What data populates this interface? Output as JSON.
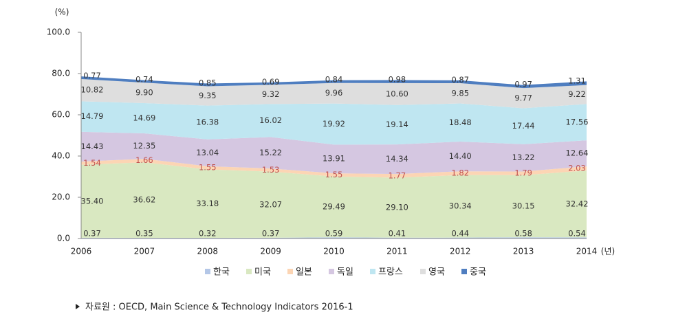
{
  "chart_data": {
    "type": "stacked_area",
    "y_label": "(%)",
    "x_label": "(년)",
    "categories": [
      "2006",
      "2007",
      "2008",
      "2009",
      "2010",
      "2011",
      "2012",
      "2013",
      "2014"
    ],
    "series": [
      {
        "name": "한국",
        "color": "#b4c7e7",
        "values": [
          0.37,
          0.35,
          0.32,
          0.37,
          0.59,
          0.41,
          0.44,
          0.58,
          0.54
        ],
        "value_labels": [
          "0.37",
          "0.35",
          "0.32",
          "0.37",
          "0.59",
          "0.41",
          "0.44",
          "0.58",
          "0.54"
        ]
      },
      {
        "name": "미국",
        "color": "#d9e8c1",
        "values": [
          35.4,
          36.62,
          33.18,
          32.07,
          29.49,
          29.1,
          30.34,
          30.15,
          32.42
        ],
        "value_labels": [
          "35.40",
          "36.62",
          "33.18",
          "32.07",
          "29.49",
          "29.10",
          "30.34",
          "30.15",
          "32.42"
        ]
      },
      {
        "name": "일본",
        "color": "#fcd5b4",
        "values": [
          1.54,
          1.66,
          1.55,
          1.53,
          1.55,
          1.77,
          1.82,
          1.79,
          2.03
        ],
        "value_labels": [
          "1.54",
          "1.66",
          "1.55",
          "1.53",
          "1.55",
          "1.77",
          "1.82",
          "1.79",
          "2.03"
        ]
      },
      {
        "name": "독일",
        "color": "#d5c7e1",
        "values": [
          14.43,
          12.35,
          13.04,
          15.22,
          13.91,
          14.34,
          14.4,
          13.22,
          12.64
        ],
        "value_labels": [
          "14.43",
          "12.35",
          "13.04",
          "15.22",
          "13.91",
          "14.34",
          "14.40",
          "13.22",
          "12.64"
        ]
      },
      {
        "name": "프랑스",
        "color": "#bfe6f1",
        "values": [
          14.79,
          14.69,
          16.38,
          16.02,
          19.92,
          19.14,
          18.48,
          17.44,
          17.56
        ],
        "value_labels": [
          "14.79",
          "14.69",
          "16.38",
          "16.02",
          "19.92",
          "19.14",
          "18.48",
          "17.44",
          "17.56"
        ]
      },
      {
        "name": "영국",
        "color": "#dedede",
        "values": [
          10.82,
          9.9,
          9.35,
          9.32,
          9.96,
          10.6,
          9.85,
          9.77,
          9.22
        ],
        "value_labels": [
          "10.82",
          "9.90",
          "9.35",
          "9.32",
          "9.96",
          "10.60",
          "9.85",
          "9.77",
          "9.22"
        ]
      },
      {
        "name": "중국",
        "color": "#4f7ec0",
        "values": [
          0.77,
          0.74,
          0.85,
          0.69,
          0.84,
          0.98,
          0.87,
          0.97,
          1.31
        ],
        "value_labels": [
          "0.77",
          "0.74",
          "0.85",
          "0.69",
          "0.84",
          "0.98",
          "0.87",
          "0.97",
          "1.31"
        ]
      }
    ],
    "ylim": [
      0,
      100
    ],
    "yticks": [
      {
        "value": 0,
        "label": "0.0"
      },
      {
        "value": 20,
        "label": "20.0"
      },
      {
        "value": 40,
        "label": "40.0"
      },
      {
        "value": 60,
        "label": "60.0"
      },
      {
        "value": 80,
        "label": "80.0"
      },
      {
        "value": 100,
        "label": "100.0"
      }
    ],
    "legend": "bottom",
    "source": "자료원 : OECD, Main Science & Technology Indicators 2016-1"
  }
}
